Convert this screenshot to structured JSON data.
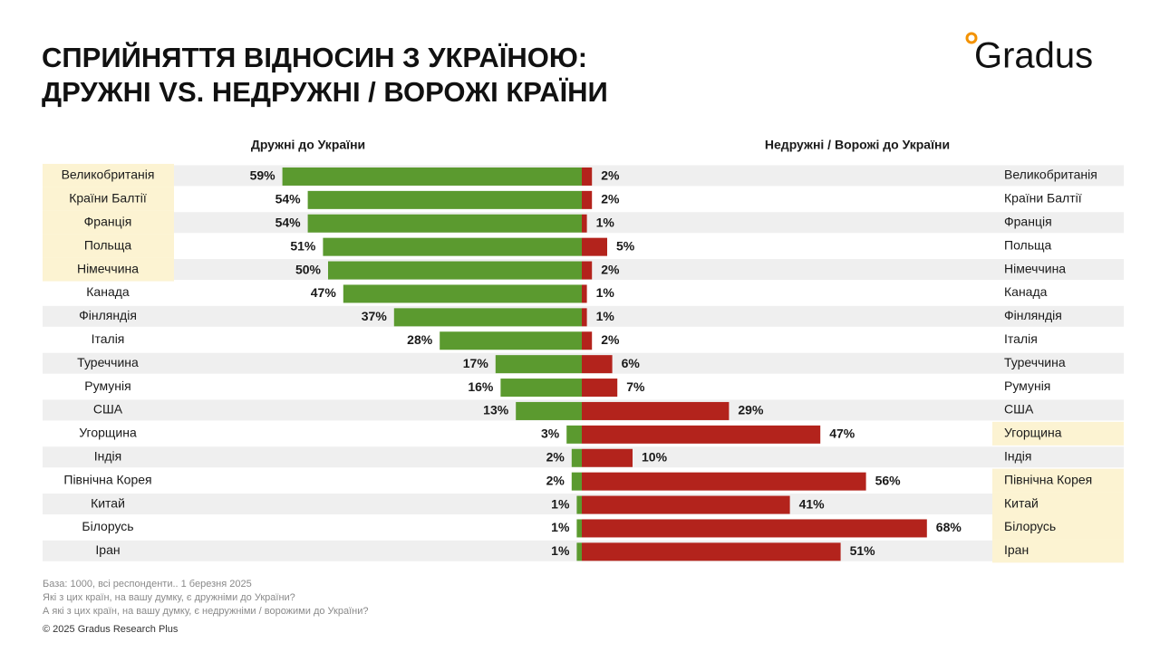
{
  "chart_data": {
    "type": "diverging-bar",
    "title": [
      "СПРИЙНЯТТЯ ВІДНОСИН З УКРАЇНОЮ:",
      "ДРУЖНІ VS. НЕДРУЖНІ / ВОРОЖІ КРАЇНИ"
    ],
    "logo": "Gradus",
    "categories": [
      "Великобританія",
      "Країни Балтії",
      "Франція",
      "Польща",
      "Німеччина",
      "Канада",
      "Фінляндія",
      "Італія",
      "Туреччина",
      "Румунія",
      "США",
      "Угорщина",
      "Індія",
      "Північна Корея",
      "Китай",
      "Білорусь",
      "Іран"
    ],
    "series": [
      {
        "name": "Дружні до України",
        "color": "#5b9a2f",
        "side": "left",
        "values": [
          59,
          54,
          54,
          51,
          50,
          47,
          37,
          28,
          17,
          16,
          13,
          3,
          2,
          2,
          1,
          1,
          1
        ],
        "value_labels": [
          "59%",
          "54%",
          "54%",
          "51%",
          "50%",
          "47%",
          "37%",
          "28%",
          "17%",
          "16%",
          "13%",
          "3%",
          "2%",
          "2%",
          "1%",
          "1%",
          "1%"
        ],
        "highlight": [
          0,
          1,
          2,
          3,
          4
        ]
      },
      {
        "name": "Недружні / Ворожі до України",
        "color": "#b3231c",
        "side": "right",
        "values": [
          2,
          2,
          1,
          5,
          2,
          1,
          1,
          2,
          6,
          7,
          29,
          47,
          10,
          56,
          41,
          68,
          51
        ],
        "value_labels": [
          "2%",
          "2%",
          "1%",
          "5%",
          "2%",
          "1%",
          "1%",
          "2%",
          "6%",
          "7%",
          "29%",
          "47%",
          "10%",
          "56%",
          "41%",
          "68%",
          "51%"
        ],
        "highlight": [
          11,
          13,
          14,
          15,
          16
        ]
      }
    ],
    "footnotes": [
      "База: 1000, всі респонденти.. 1 березня 2025",
      "Які з цих країн, на вашу думку, є дружніми до України?",
      "А які з цих країн, на вашу думку, є недружніми / ворожими до України?"
    ],
    "copyright": "© 2025 Gradus Research Plus"
  }
}
